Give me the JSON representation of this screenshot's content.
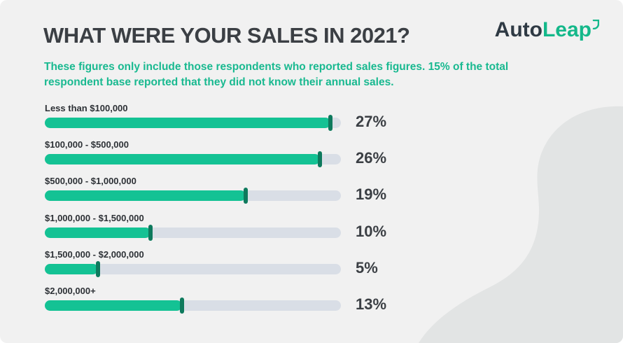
{
  "header": {
    "title": "WHAT WERE YOUR SALES IN 2021?",
    "subtitle": "These figures only include those respondents who reported sales figures. 15% of the total respondent base reported that they did not know their annual sales."
  },
  "logo": {
    "part1": "Auto",
    "part2": "Leap"
  },
  "colors": {
    "accent": "#14c294",
    "marker": "#0e7a5d",
    "track": "#d9dee6",
    "background": "#f1f1f1",
    "subtitle": "#19b990"
  },
  "chart_data": {
    "type": "bar",
    "orientation": "horizontal",
    "title": "WHAT WERE YOUR SALES IN 2021?",
    "categories": [
      "Less than $100,000",
      "$100,000 - $500,000",
      "$500,000 - $1,000,000",
      "$1,000,000 - $1,500,000",
      "$1,500,000 - $2,000,000",
      "$2,000,000+"
    ],
    "values": [
      27,
      26,
      19,
      10,
      5,
      13
    ],
    "labels": [
      "27%",
      "26%",
      "19%",
      "10%",
      "5%",
      "13%"
    ],
    "unit": "%",
    "xlim": [
      0,
      28
    ],
    "grid": false
  }
}
